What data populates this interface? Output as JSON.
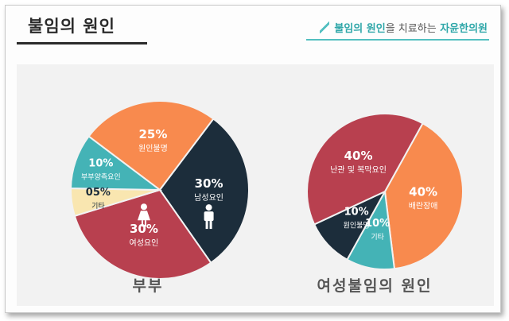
{
  "header": {
    "title": "불임의 원인",
    "tagline_part1": "불임의 원인",
    "tagline_part2": "을 치료하는",
    "tagline_part3": "자윤한의원"
  },
  "colors": {
    "orange": "#f88a4e",
    "navy": "#1c2d3b",
    "crimson": "#b8404f",
    "teal": "#44b3b6",
    "cream": "#f9e6b0"
  },
  "chart_data": [
    {
      "type": "pie",
      "title": "부부",
      "slices": [
        {
          "label": "원인불명",
          "value": 25,
          "value_label": "25%",
          "color": "#f88a4e",
          "icon": ""
        },
        {
          "label": "남성요인",
          "value": 30,
          "value_label": "30%",
          "color": "#1c2d3b",
          "icon": "male-person-icon"
        },
        {
          "label": "여성요인",
          "value": 30,
          "value_label": "30%",
          "color": "#b8404f",
          "icon": "female-person-icon"
        },
        {
          "label": "기타",
          "value": 5,
          "value_label": "05%",
          "color": "#f9e6b0",
          "icon": ""
        },
        {
          "label": "부부양측요인",
          "value": 10,
          "value_label": "10%",
          "color": "#44b3b6",
          "icon": ""
        }
      ]
    },
    {
      "type": "pie",
      "title": "여성불임의 원인",
      "slices": [
        {
          "label": "배란장애",
          "value": 40,
          "value_label": "40%",
          "color": "#f88a4e"
        },
        {
          "label": "기타",
          "value": 10,
          "value_label": "10%",
          "color": "#44b3b6"
        },
        {
          "label": "원인불명",
          "value": 10,
          "value_label": "10%",
          "color": "#1c2d3b"
        },
        {
          "label": "난관 및 복막요인",
          "value": 40,
          "value_label": "40%",
          "color": "#b8404f"
        }
      ]
    }
  ]
}
